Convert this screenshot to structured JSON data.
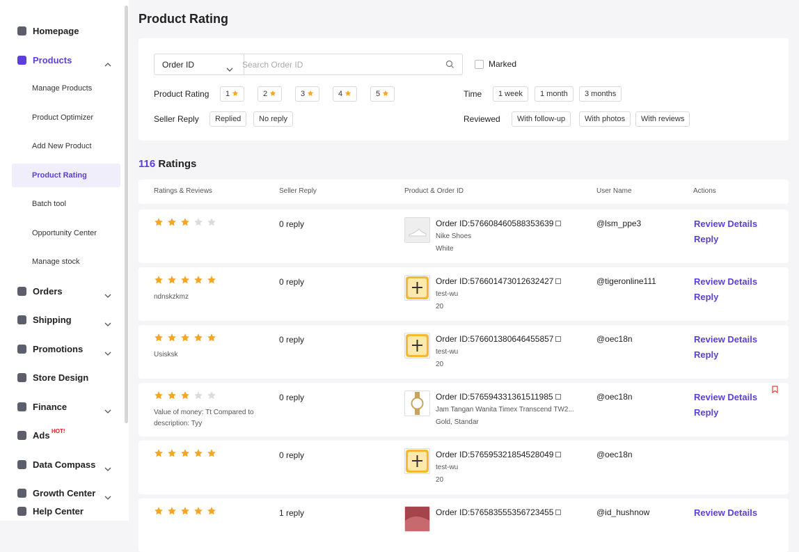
{
  "sidebar": {
    "menu": [
      {
        "label": "Homepage"
      },
      {
        "label": "Products",
        "active": true,
        "has_submenu": true,
        "expanded": true
      },
      {
        "label": "Manage Products",
        "level": 2
      },
      {
        "label": "Product Optimizer",
        "level": 2
      },
      {
        "label": "Add New Product",
        "level": 2
      },
      {
        "label": "Product Rating",
        "level": 2,
        "selected": true
      },
      {
        "label": "Batch tool",
        "level": 2
      },
      {
        "label": "Opportunity Center",
        "level": 2
      },
      {
        "label": "Manage stock",
        "level": 2
      },
      {
        "label": "Orders",
        "has_submenu": true
      },
      {
        "label": "Shipping",
        "has_submenu": true
      },
      {
        "label": "Promotions",
        "has_submenu": true
      },
      {
        "label": "Store Design"
      },
      {
        "label": "Finance",
        "has_submenu": true
      },
      {
        "label": "Ads",
        "badge": "HOT!"
      },
      {
        "label": "Data Compass",
        "has_submenu": true
      },
      {
        "label": "Growth Center",
        "has_submenu": true
      }
    ],
    "footer": "Help Center"
  },
  "header": {
    "title": "Product Rating"
  },
  "filters": {
    "select": "Order ID",
    "search_placeholder": "Search Order ID",
    "marked": "Marked",
    "product_rating": {
      "label": "Product Rating",
      "options": [
        "1",
        "2",
        "3",
        "4",
        "5"
      ]
    },
    "time": {
      "label": "Time",
      "options": [
        "1 week",
        "1 month",
        "3 months"
      ]
    },
    "seller_reply": {
      "label": "Seller Reply",
      "options": [
        "Replied",
        "No reply"
      ]
    },
    "reviewed": {
      "label": "Reviewed",
      "options": [
        "With follow-up",
        "With photos",
        "With reviews"
      ]
    }
  },
  "summary": {
    "count": 116,
    "label": "Ratings"
  },
  "table": {
    "columns": [
      "Ratings & Reviews",
      "Seller Reply",
      "Product & Order ID",
      "User Name",
      "Actions"
    ],
    "max_rating": 5,
    "rows": [
      {
        "rating": 3,
        "reply": "0 reply",
        "image": "shoe",
        "order_id": "Order ID:576608460588353639",
        "product": "Nike Shoes",
        "variant": "White",
        "user": "@lsm_ppe3",
        "actions": [
          "Review Details",
          "Reply"
        ]
      },
      {
        "rating": 5,
        "review": "ndnskzkmz",
        "reply": "0 reply",
        "image": "tile",
        "order_id": "Order ID:576601473012632427",
        "product": "test-wu",
        "variant": "20",
        "user": "@tigeronline111",
        "actions": [
          "Review Details",
          "Reply"
        ]
      },
      {
        "rating": 5,
        "review": "Usisksk",
        "reply": "0 reply",
        "image": "tile",
        "order_id": "Order ID:576601380646455857",
        "product": "test-wu",
        "variant": "20",
        "user": "@oec18n",
        "actions": [
          "Review Details",
          "Reply"
        ]
      },
      {
        "rating": 3,
        "review": "Value of money: Tt Compared to description: Tyy",
        "reply": "0 reply",
        "image": "watch",
        "order_id": "Order ID:576594331361511985",
        "product": "Jam Tangan Wanita Timex Transcend TW2...",
        "variant": "Gold, Standar",
        "user": "@oec18n",
        "actions": [
          "Review Details",
          "Reply"
        ],
        "flagged": true
      },
      {
        "rating": 5,
        "reply": "0 reply",
        "image": "tile",
        "order_id": "Order ID:576595321854528049",
        "product": "test-wu",
        "variant": "20",
        "user": "@oec18n"
      },
      {
        "rating": 5,
        "reply": "1 reply",
        "image": "photo",
        "order_id": "Order ID:576583555356723455",
        "user": "@id_hushnow",
        "actions": [
          "Review Details"
        ]
      }
    ]
  }
}
